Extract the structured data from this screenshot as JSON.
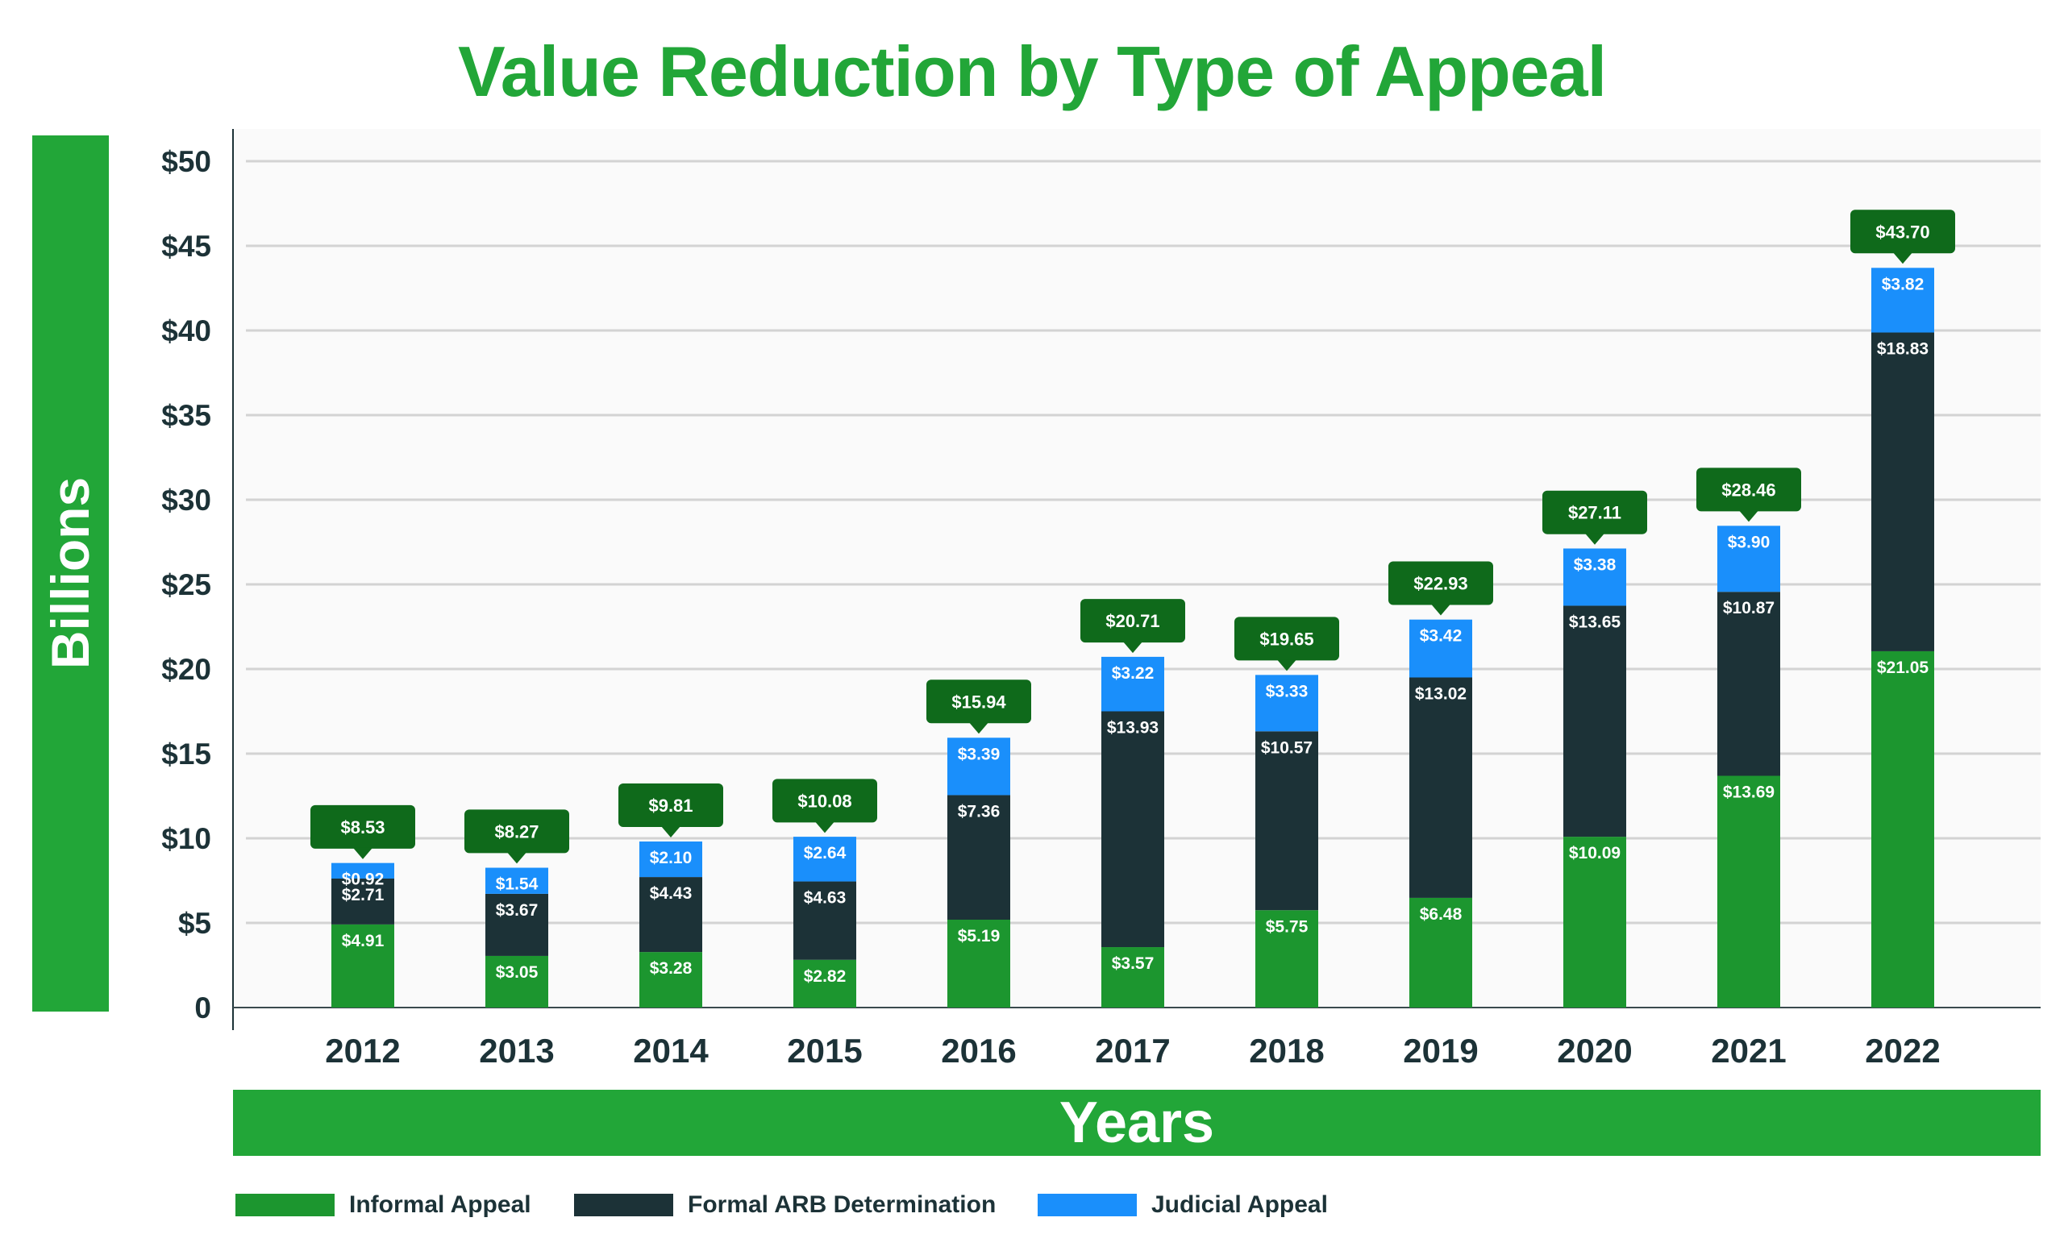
{
  "colors": {
    "title": "#22a638",
    "band": "#22a638",
    "informal": "#1c962f",
    "formal": "#1c3237",
    "judicial": "#1a8ffb",
    "callout": "#0f6a1b",
    "axis_text": "#1c3237",
    "grid": "#d3d3d3"
  },
  "chart_data": {
    "type": "bar",
    "stacked": true,
    "title": "Value Reduction by Type of Appeal",
    "xlabel": "Years",
    "ylabel": "Billions",
    "ylim": [
      0,
      50
    ],
    "yticks": [
      0,
      5,
      10,
      15,
      20,
      25,
      30,
      35,
      40,
      45,
      50
    ],
    "ytick_labels": [
      "0",
      "$5",
      "$10",
      "$15",
      "$20",
      "$25",
      "$30",
      "$35",
      "$40",
      "$45",
      "$50"
    ],
    "grid": true,
    "legend_position": "bottom-left",
    "categories": [
      "2012",
      "2013",
      "2014",
      "2015",
      "2016",
      "2017",
      "2018",
      "2019",
      "2020",
      "2021",
      "2022"
    ],
    "series": [
      {
        "name": "Informal Appeal",
        "values": [
          4.91,
          3.05,
          3.28,
          2.82,
          5.19,
          3.57,
          5.75,
          6.48,
          10.09,
          13.69,
          21.05
        ],
        "labels": [
          "$4.91",
          "$3.05",
          "$3.28",
          "$2.82",
          "$5.19",
          "$3.57",
          "$5.75",
          "$6.48",
          "$10.09",
          "$13.69",
          "$21.05"
        ]
      },
      {
        "name": "Formal ARB Determination",
        "values": [
          2.71,
          3.67,
          4.43,
          4.63,
          7.36,
          13.93,
          10.57,
          13.02,
          13.65,
          10.87,
          18.83
        ],
        "labels": [
          "$2.71",
          "$3.67",
          "$4.43",
          "$4.63",
          "$7.36",
          "$13.93",
          "$10.57",
          "$13.02",
          "$13.65",
          "$10.87",
          "$18.83"
        ]
      },
      {
        "name": "Judicial Appeal",
        "values": [
          0.92,
          1.54,
          2.1,
          2.64,
          3.39,
          3.22,
          3.33,
          3.42,
          3.38,
          3.9,
          3.82
        ],
        "labels": [
          "$0.92",
          "$1.54",
          "$2.10",
          "$2.64",
          "$3.39",
          "$3.22",
          "$3.33",
          "$3.42",
          "$3.38",
          "$3.90",
          "$3.82"
        ]
      }
    ],
    "totals": [
      8.53,
      8.27,
      9.81,
      10.08,
      15.94,
      20.71,
      19.65,
      22.93,
      27.11,
      28.46,
      43.7
    ],
    "total_labels": [
      "$8.53",
      "$8.27",
      "$9.81",
      "$10.08",
      "$15.94",
      "$20.71",
      "$19.65",
      "$22.93",
      "$27.11",
      "$28.46",
      "$43.70"
    ]
  }
}
